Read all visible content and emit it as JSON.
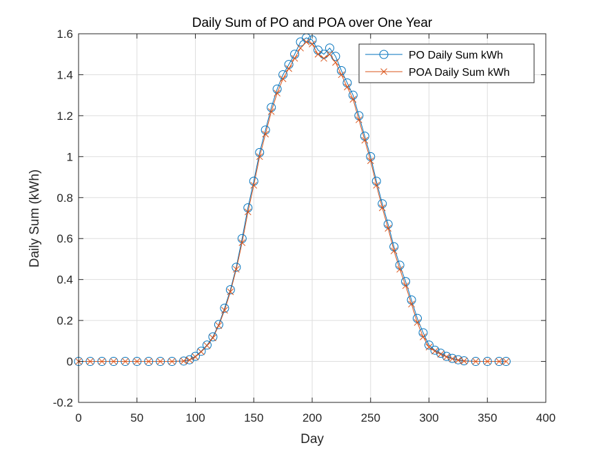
{
  "chart_data": {
    "type": "line",
    "title": "Daily Sum of PO and POA over One Year",
    "xlabel": "Day",
    "ylabel": "Daily Sum (kWh)",
    "xlim": [
      0,
      400
    ],
    "ylim": [
      -0.2,
      1.6
    ],
    "xticks": [
      0,
      50,
      100,
      150,
      200,
      250,
      300,
      350,
      400
    ],
    "yticks": [
      -0.2,
      0,
      0.2,
      0.4,
      0.6,
      0.8,
      1,
      1.2,
      1.4,
      1.6
    ],
    "xtick_labels": [
      "0",
      "50",
      "100",
      "150",
      "200",
      "250",
      "300",
      "350",
      "400"
    ],
    "ytick_labels": [
      "-0.2",
      "0",
      "0.2",
      "0.4",
      "0.6",
      "0.8",
      "1",
      "1.2",
      "1.4",
      "1.6"
    ],
    "grid": true,
    "legend_position": "top-right",
    "x": [
      0,
      10,
      20,
      30,
      40,
      50,
      60,
      70,
      80,
      90,
      95,
      100,
      105,
      110,
      115,
      120,
      125,
      130,
      135,
      140,
      145,
      150,
      155,
      160,
      165,
      170,
      175,
      180,
      185,
      190,
      195,
      200,
      205,
      210,
      215,
      220,
      225,
      230,
      235,
      240,
      245,
      250,
      255,
      260,
      265,
      270,
      275,
      280,
      285,
      290,
      295,
      300,
      305,
      310,
      315,
      320,
      325,
      330,
      340,
      350,
      360,
      366
    ],
    "series": [
      {
        "name": "PO Daily Sum kWh",
        "color": "#0072BD",
        "marker": "circle",
        "values": [
          0,
          0,
          0,
          0,
          0,
          0,
          0,
          0,
          0,
          0.002,
          0.008,
          0.025,
          0.05,
          0.08,
          0.12,
          0.18,
          0.26,
          0.35,
          0.46,
          0.6,
          0.75,
          0.88,
          1.02,
          1.13,
          1.24,
          1.33,
          1.4,
          1.45,
          1.5,
          1.56,
          1.58,
          1.57,
          1.52,
          1.5,
          1.53,
          1.49,
          1.42,
          1.36,
          1.3,
          1.2,
          1.1,
          1.0,
          0.88,
          0.77,
          0.67,
          0.56,
          0.47,
          0.39,
          0.3,
          0.21,
          0.14,
          0.08,
          0.055,
          0.04,
          0.025,
          0.015,
          0.008,
          0.003,
          0,
          0,
          0,
          0
        ]
      },
      {
        "name": "POA Daily Sum kWh",
        "color": "#D95319",
        "marker": "x",
        "values": [
          0,
          0,
          0,
          0,
          0,
          0,
          0,
          0,
          0,
          0.002,
          0.007,
          0.022,
          0.047,
          0.077,
          0.115,
          0.175,
          0.25,
          0.34,
          0.45,
          0.58,
          0.73,
          0.86,
          1.0,
          1.11,
          1.22,
          1.31,
          1.38,
          1.43,
          1.48,
          1.53,
          1.56,
          1.55,
          1.5,
          1.48,
          1.5,
          1.46,
          1.4,
          1.34,
          1.28,
          1.18,
          1.08,
          0.98,
          0.86,
          0.75,
          0.65,
          0.54,
          0.45,
          0.37,
          0.28,
          0.19,
          0.12,
          0.07,
          0.05,
          0.035,
          0.022,
          0.013,
          0.006,
          0.002,
          0,
          0,
          0,
          0
        ]
      }
    ]
  }
}
